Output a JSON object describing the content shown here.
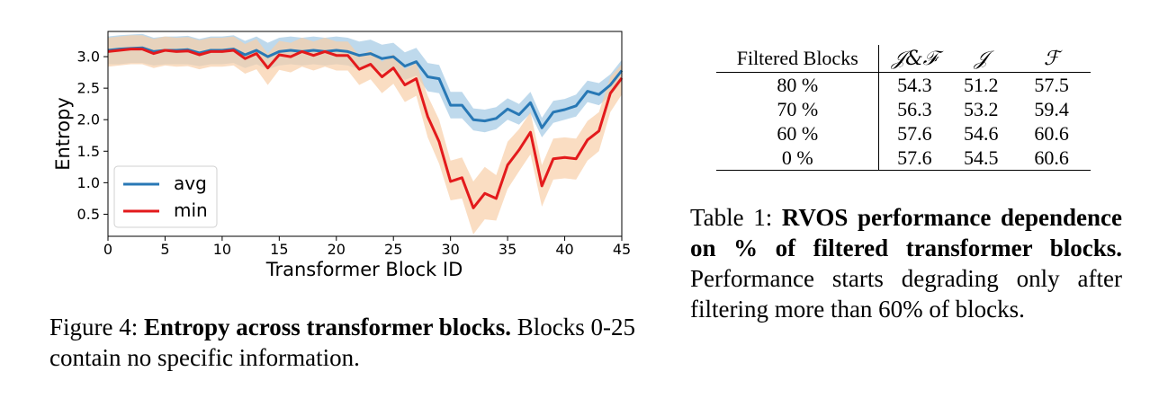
{
  "figure": {
    "caption_label": "Figure 4:",
    "caption_title": "Entropy across transformer blocks.",
    "caption_text": "Blocks 0-25 contain no specific information."
  },
  "chart_data": {
    "type": "line",
    "xlabel": "Transformer Block ID",
    "ylabel": "Entropy",
    "xlim": [
      0,
      45
    ],
    "ylim": [
      0.15,
      3.4
    ],
    "xticks": [
      0,
      5,
      10,
      15,
      20,
      25,
      30,
      35,
      40,
      45
    ],
    "yticks": [
      0.5,
      1.0,
      1.5,
      2.0,
      2.5,
      3.0
    ],
    "ytick_labels": [
      "0.5",
      "1.0",
      "1.5",
      "2.0",
      "2.5",
      "3.0"
    ],
    "legend_position": "lower-left",
    "grid": false,
    "x": [
      0,
      1,
      2,
      3,
      4,
      5,
      6,
      7,
      8,
      9,
      10,
      11,
      12,
      13,
      14,
      15,
      16,
      17,
      18,
      19,
      20,
      21,
      22,
      23,
      24,
      25,
      26,
      27,
      28,
      29,
      30,
      31,
      32,
      33,
      34,
      35,
      36,
      37,
      38,
      39,
      40,
      41,
      42,
      43,
      44,
      45
    ],
    "series": [
      {
        "name": "avg",
        "color": "#2878b5",
        "band_color": "#a8cce6",
        "values": [
          3.1,
          3.12,
          3.13,
          3.14,
          3.08,
          3.1,
          3.1,
          3.11,
          3.06,
          3.1,
          3.1,
          3.12,
          3.03,
          3.1,
          3.0,
          3.08,
          3.1,
          3.08,
          3.1,
          3.08,
          3.1,
          3.08,
          3.02,
          3.05,
          2.97,
          3.0,
          2.85,
          2.92,
          2.68,
          2.65,
          2.23,
          2.23,
          2.0,
          1.98,
          2.02,
          2.17,
          2.08,
          2.27,
          1.87,
          2.12,
          2.16,
          2.22,
          2.45,
          2.4,
          2.55,
          2.78
        ],
        "band_low": [
          2.88,
          2.88,
          2.9,
          2.9,
          2.86,
          2.88,
          2.88,
          2.88,
          2.85,
          2.88,
          2.88,
          2.9,
          2.82,
          2.88,
          2.8,
          2.86,
          2.88,
          2.86,
          2.88,
          2.86,
          2.88,
          2.86,
          2.8,
          2.83,
          2.76,
          2.78,
          2.63,
          2.7,
          2.45,
          2.42,
          2.02,
          2.02,
          1.83,
          1.8,
          1.85,
          2.0,
          1.92,
          2.1,
          1.72,
          1.95,
          2.0,
          2.05,
          2.28,
          2.23,
          2.38,
          2.6
        ],
        "band_high": [
          3.32,
          3.34,
          3.35,
          3.36,
          3.3,
          3.32,
          3.32,
          3.33,
          3.28,
          3.32,
          3.32,
          3.34,
          3.25,
          3.32,
          3.22,
          3.3,
          3.32,
          3.3,
          3.32,
          3.3,
          3.32,
          3.3,
          3.24,
          3.27,
          3.19,
          3.22,
          3.07,
          3.14,
          2.9,
          2.87,
          2.44,
          2.44,
          2.18,
          2.16,
          2.2,
          2.34,
          2.25,
          2.44,
          2.03,
          2.3,
          2.33,
          2.4,
          2.62,
          2.58,
          2.72,
          2.95
        ]
      },
      {
        "name": "min",
        "color": "#e31a1c",
        "band_color": "#f8cfa8",
        "values": [
          3.08,
          3.1,
          3.12,
          3.12,
          3.05,
          3.1,
          3.08,
          3.09,
          3.03,
          3.08,
          3.08,
          3.1,
          2.97,
          3.05,
          2.82,
          3.03,
          3.0,
          3.08,
          3.02,
          3.08,
          3.02,
          3.02,
          2.8,
          2.88,
          2.68,
          2.82,
          2.55,
          2.65,
          2.05,
          1.65,
          1.02,
          1.08,
          0.6,
          0.83,
          0.75,
          1.28,
          1.52,
          1.8,
          0.95,
          1.38,
          1.4,
          1.38,
          1.68,
          1.82,
          2.42,
          2.66
        ],
        "band_low": [
          2.84,
          2.86,
          2.88,
          2.88,
          2.82,
          2.86,
          2.84,
          2.85,
          2.8,
          2.84,
          2.84,
          2.86,
          2.73,
          2.8,
          2.55,
          2.79,
          2.75,
          2.84,
          2.78,
          2.84,
          2.78,
          2.78,
          2.55,
          2.64,
          2.42,
          2.57,
          2.28,
          2.38,
          1.72,
          1.3,
          0.72,
          0.75,
          0.18,
          0.42,
          0.4,
          0.9,
          1.18,
          1.45,
          0.62,
          1.05,
          1.07,
          1.05,
          1.35,
          1.5,
          2.12,
          2.4
        ],
        "band_high": [
          3.3,
          3.32,
          3.34,
          3.34,
          3.28,
          3.32,
          3.3,
          3.31,
          3.26,
          3.3,
          3.3,
          3.32,
          3.2,
          3.28,
          3.05,
          3.25,
          3.22,
          3.3,
          3.24,
          3.3,
          3.24,
          3.24,
          3.02,
          3.1,
          2.92,
          3.04,
          2.8,
          2.9,
          2.38,
          2.0,
          1.35,
          1.4,
          1.02,
          1.25,
          1.12,
          1.65,
          1.85,
          2.12,
          1.28,
          1.7,
          1.72,
          1.7,
          1.98,
          2.12,
          2.68,
          2.88
        ]
      }
    ]
  },
  "table": {
    "caption_label": "Table 1:",
    "caption_title": "RVOS performance dependence on % of filtered transformer blocks.",
    "caption_text": "Performance starts degrading only after filtering more than 60% of blocks.",
    "headers": [
      "Filtered Blocks",
      "𝒥&ℱ",
      "𝒥",
      "ℱ"
    ],
    "rows": [
      [
        "80 %",
        "54.3",
        "51.2",
        "57.5"
      ],
      [
        "70 %",
        "56.3",
        "53.2",
        "59.4"
      ],
      [
        "60 %",
        "57.6",
        "54.6",
        "60.6"
      ],
      [
        "0 %",
        "57.6",
        "54.5",
        "60.6"
      ]
    ]
  }
}
